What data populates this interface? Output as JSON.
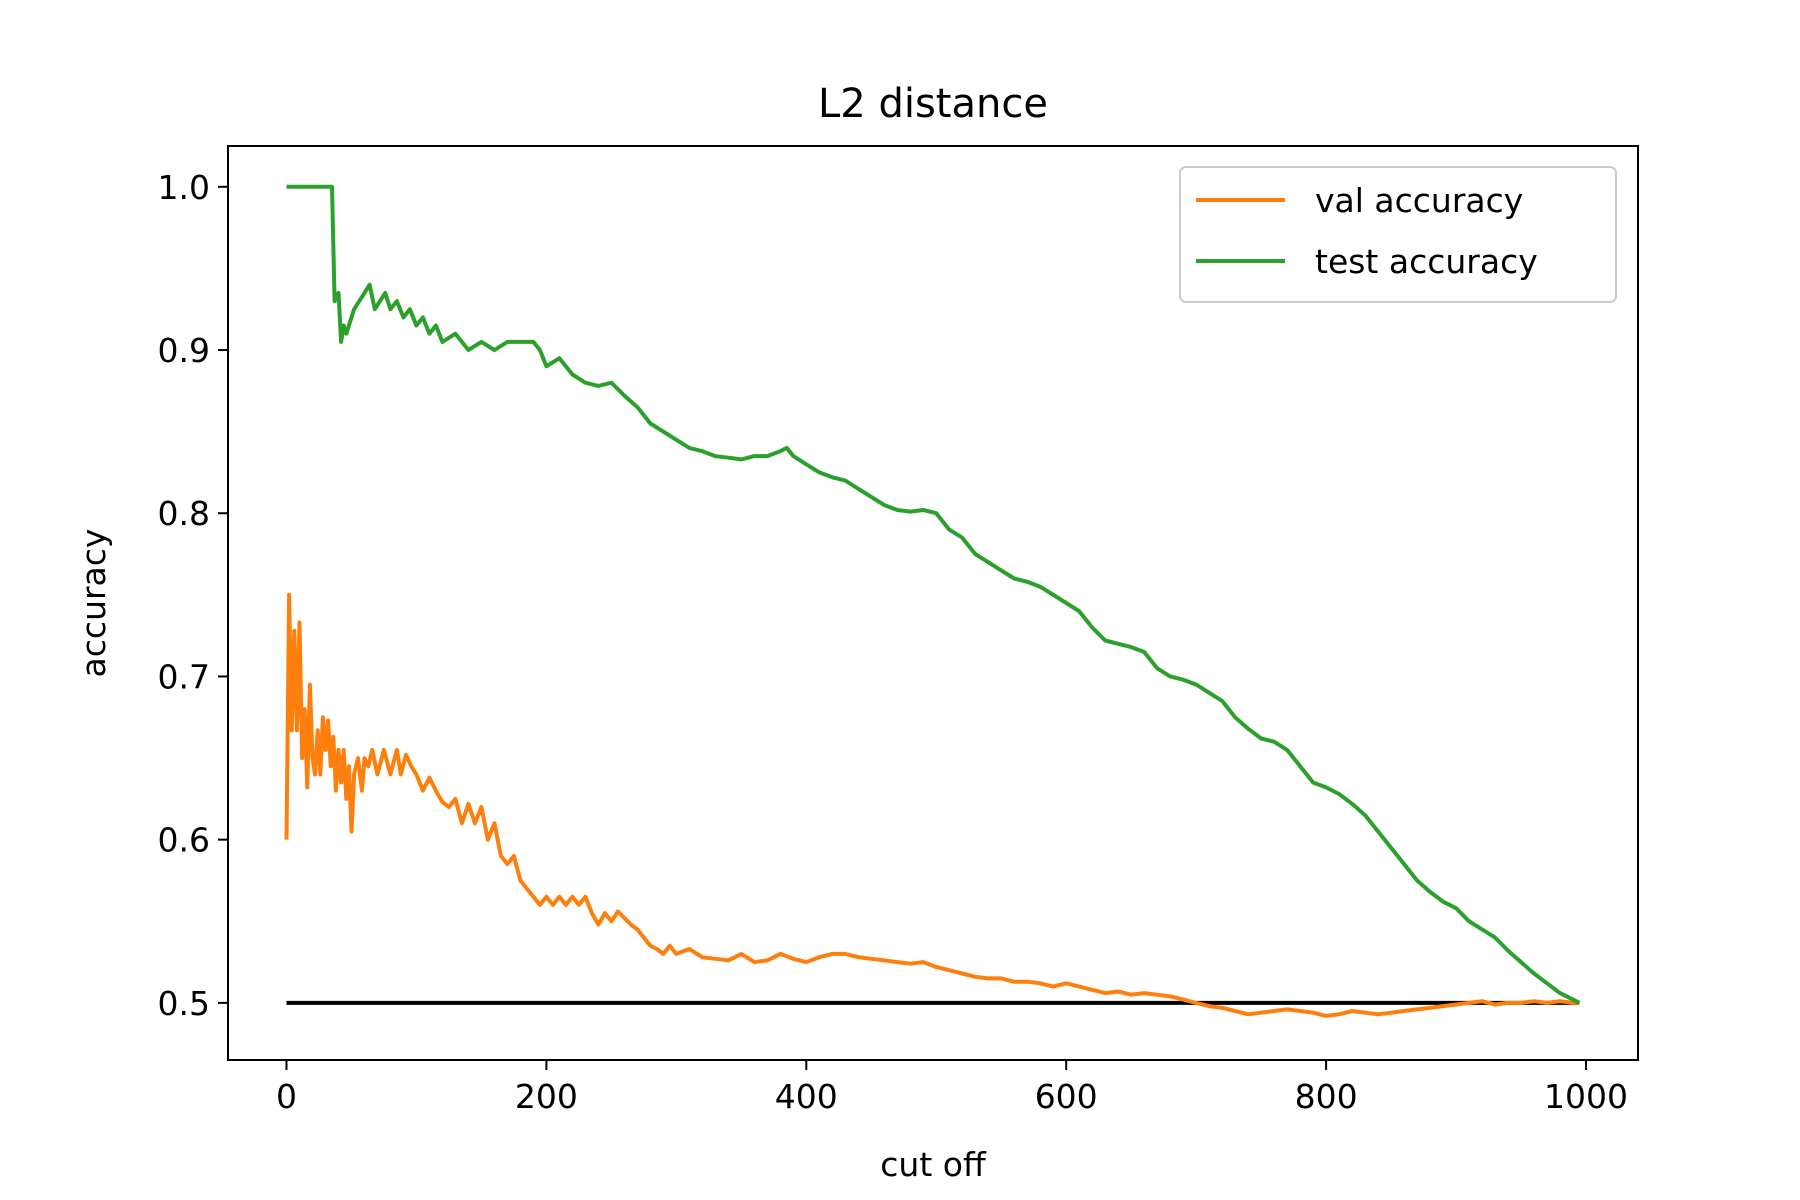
{
  "chart_data": {
    "type": "line",
    "title": "L2 distance",
    "xlabel": "cut off",
    "ylabel": "accuracy",
    "xlim": [
      -45,
      1040
    ],
    "ylim": [
      0.465,
      1.025
    ],
    "xticks": [
      0,
      200,
      400,
      600,
      800,
      1000
    ],
    "yticks": [
      0.5,
      0.6,
      0.7,
      0.8,
      0.9,
      1.0
    ],
    "xtick_labels": [
      "0",
      "200",
      "400",
      "600",
      "800",
      "1000"
    ],
    "ytick_labels": [
      "0.5",
      "0.6",
      "0.7",
      "0.8",
      "0.9",
      "1.0"
    ],
    "grid": false,
    "legend": "top-right",
    "baseline": {
      "y": 0.5,
      "x": [
        0,
        995
      ],
      "color": "#000000"
    },
    "series": [
      {
        "name": "val accuracy",
        "color": "#ff7f0e",
        "x": [
          0,
          2,
          4,
          6,
          8,
          10,
          12,
          14,
          16,
          18,
          20,
          22,
          24,
          26,
          28,
          30,
          32,
          34,
          36,
          38,
          40,
          42,
          44,
          46,
          48,
          50,
          52,
          55,
          58,
          60,
          63,
          66,
          70,
          75,
          80,
          85,
          88,
          92,
          96,
          100,
          105,
          110,
          115,
          120,
          125,
          130,
          135,
          140,
          145,
          150,
          155,
          160,
          165,
          170,
          175,
          180,
          185,
          190,
          195,
          200,
          205,
          210,
          215,
          220,
          225,
          230,
          235,
          240,
          245,
          250,
          255,
          260,
          265,
          270,
          275,
          280,
          285,
          290,
          295,
          300,
          310,
          320,
          330,
          340,
          350,
          360,
          370,
          380,
          390,
          400,
          410,
          420,
          430,
          440,
          450,
          460,
          470,
          480,
          490,
          500,
          510,
          520,
          530,
          540,
          550,
          560,
          570,
          580,
          590,
          600,
          610,
          620,
          630,
          640,
          650,
          660,
          670,
          680,
          690,
          700,
          710,
          720,
          730,
          740,
          750,
          760,
          770,
          780,
          790,
          800,
          810,
          820,
          830,
          840,
          850,
          860,
          870,
          880,
          890,
          900,
          910,
          920,
          930,
          940,
          950,
          960,
          970,
          980,
          990,
          995
        ],
        "y": [
          0.6,
          0.75,
          0.667,
          0.728,
          0.667,
          0.733,
          0.65,
          0.68,
          0.632,
          0.695,
          0.65,
          0.64,
          0.667,
          0.64,
          0.675,
          0.655,
          0.673,
          0.645,
          0.663,
          0.63,
          0.655,
          0.635,
          0.655,
          0.625,
          0.645,
          0.605,
          0.64,
          0.65,
          0.63,
          0.65,
          0.645,
          0.655,
          0.64,
          0.655,
          0.64,
          0.655,
          0.64,
          0.652,
          0.645,
          0.64,
          0.63,
          0.638,
          0.63,
          0.623,
          0.62,
          0.625,
          0.61,
          0.622,
          0.61,
          0.62,
          0.6,
          0.61,
          0.59,
          0.585,
          0.59,
          0.575,
          0.57,
          0.565,
          0.56,
          0.565,
          0.56,
          0.565,
          0.56,
          0.565,
          0.56,
          0.565,
          0.555,
          0.548,
          0.555,
          0.55,
          0.556,
          0.552,
          0.548,
          0.545,
          0.54,
          0.535,
          0.533,
          0.53,
          0.535,
          0.53,
          0.533,
          0.528,
          0.527,
          0.526,
          0.53,
          0.525,
          0.526,
          0.53,
          0.527,
          0.525,
          0.528,
          0.53,
          0.53,
          0.528,
          0.527,
          0.526,
          0.525,
          0.524,
          0.525,
          0.522,
          0.52,
          0.518,
          0.516,
          0.515,
          0.515,
          0.513,
          0.513,
          0.512,
          0.51,
          0.512,
          0.51,
          0.508,
          0.506,
          0.507,
          0.505,
          0.506,
          0.505,
          0.504,
          0.502,
          0.5,
          0.498,
          0.497,
          0.495,
          0.493,
          0.494,
          0.495,
          0.496,
          0.495,
          0.494,
          0.492,
          0.493,
          0.495,
          0.494,
          0.493,
          0.494,
          0.495,
          0.496,
          0.497,
          0.498,
          0.499,
          0.5,
          0.501,
          0.499,
          0.5,
          0.5,
          0.501,
          0.5,
          0.501,
          0.5,
          0.5
        ]
      },
      {
        "name": "test accuracy",
        "color": "#2ca02c",
        "x": [
          0,
          10,
          20,
          30,
          35,
          37,
          40,
          42,
          44,
          46,
          48,
          52,
          56,
          60,
          64,
          68,
          72,
          76,
          80,
          85,
          90,
          95,
          100,
          105,
          110,
          115,
          120,
          130,
          140,
          150,
          160,
          170,
          180,
          190,
          195,
          200,
          210,
          220,
          230,
          240,
          250,
          260,
          270,
          280,
          290,
          300,
          310,
          320,
          330,
          340,
          350,
          360,
          370,
          380,
          385,
          390,
          400,
          410,
          420,
          430,
          440,
          450,
          460,
          470,
          480,
          490,
          500,
          510,
          520,
          530,
          540,
          550,
          560,
          570,
          580,
          590,
          600,
          610,
          620,
          630,
          640,
          650,
          660,
          670,
          680,
          690,
          700,
          710,
          720,
          730,
          740,
          750,
          760,
          770,
          780,
          790,
          800,
          810,
          820,
          830,
          840,
          850,
          860,
          870,
          880,
          890,
          900,
          910,
          920,
          930,
          940,
          950,
          960,
          970,
          980,
          990,
          995
        ],
        "y": [
          1.0,
          1.0,
          1.0,
          1.0,
          1.0,
          0.93,
          0.935,
          0.905,
          0.915,
          0.91,
          0.915,
          0.925,
          0.93,
          0.935,
          0.94,
          0.925,
          0.93,
          0.935,
          0.925,
          0.93,
          0.92,
          0.925,
          0.915,
          0.92,
          0.91,
          0.915,
          0.905,
          0.91,
          0.9,
          0.905,
          0.9,
          0.905,
          0.905,
          0.905,
          0.9,
          0.89,
          0.895,
          0.885,
          0.88,
          0.878,
          0.88,
          0.872,
          0.865,
          0.855,
          0.85,
          0.845,
          0.84,
          0.838,
          0.835,
          0.834,
          0.833,
          0.835,
          0.835,
          0.838,
          0.84,
          0.835,
          0.83,
          0.825,
          0.822,
          0.82,
          0.815,
          0.81,
          0.805,
          0.802,
          0.801,
          0.802,
          0.8,
          0.79,
          0.785,
          0.775,
          0.77,
          0.765,
          0.76,
          0.758,
          0.755,
          0.75,
          0.745,
          0.74,
          0.73,
          0.722,
          0.72,
          0.718,
          0.715,
          0.705,
          0.7,
          0.698,
          0.695,
          0.69,
          0.685,
          0.675,
          0.668,
          0.662,
          0.66,
          0.655,
          0.645,
          0.635,
          0.632,
          0.628,
          0.622,
          0.615,
          0.605,
          0.595,
          0.585,
          0.575,
          0.568,
          0.562,
          0.558,
          0.55,
          0.545,
          0.54,
          0.532,
          0.525,
          0.518,
          0.512,
          0.506,
          0.502,
          0.5
        ]
      }
    ]
  }
}
